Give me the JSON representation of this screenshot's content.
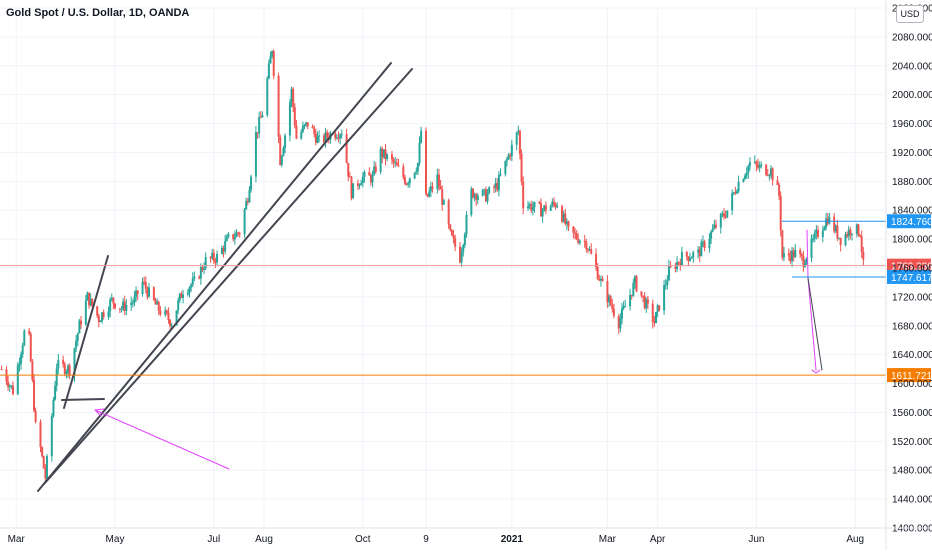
{
  "header": {
    "title": "Gold Spot / U.S. Dollar, 1D, OANDA",
    "currency": "USD"
  },
  "colors": {
    "up": "#26a69a",
    "down": "#ef5350",
    "support": "#f57c00",
    "level": "#2196f3",
    "arrow": "#e040fb",
    "trend": "#434651",
    "price_badge": "#ef5350"
  },
  "chart_data": {
    "type": "candlestick",
    "title": "Gold Spot / U.S. Dollar, 1D, OANDA",
    "ylim": [
      1400,
      2120
    ],
    "y_ticks": [
      "1400.000",
      "1440.000",
      "1480.000",
      "1520.000",
      "1560.000",
      "1600.000",
      "1640.000",
      "1680.000",
      "1720.000",
      "1760.000",
      "1800.000",
      "1840.000",
      "1880.000",
      "1920.000",
      "1960.000",
      "2000.000",
      "2040.000",
      "2080.000",
      "2120.000"
    ],
    "x_ticks": [
      "Mar",
      "May",
      "Jul",
      "Aug",
      "Oct",
      "9",
      "2021",
      "Mar",
      "Apr",
      "Jun",
      "Aug"
    ],
    "x_tick_values": [
      "2020-03-01",
      "2020-05-01",
      "2020-07-01",
      "2020-08-01",
      "2020-10-01",
      "2020-11-09",
      "2021-01-01",
      "2021-03-01",
      "2021-04-01",
      "2021-06-01",
      "2021-08-01"
    ],
    "x_range": [
      "2020-02-20",
      "2021-08-20"
    ],
    "series": [
      {
        "points": [
          [
            "2020-02-21",
            1620
          ],
          [
            "2020-02-28",
            1590
          ],
          [
            "2020-03-06",
            1670
          ],
          [
            "2020-03-09",
            1660
          ],
          [
            "2020-03-13",
            1540
          ],
          [
            "2020-03-16",
            1510
          ],
          [
            "2020-03-19",
            1470
          ],
          [
            "2020-03-23",
            1555
          ],
          [
            "2020-03-26",
            1625
          ],
          [
            "2020-04-03",
            1620
          ],
          [
            "2020-04-09",
            1680
          ],
          [
            "2020-04-14",
            1720
          ],
          [
            "2020-04-21",
            1690
          ],
          [
            "2020-04-29",
            1715
          ],
          [
            "2020-05-05",
            1705
          ],
          [
            "2020-05-13",
            1715
          ],
          [
            "2020-05-18",
            1740
          ],
          [
            "2020-05-27",
            1705
          ],
          [
            "2020-06-05",
            1685
          ],
          [
            "2020-06-12",
            1730
          ],
          [
            "2020-06-19",
            1740
          ],
          [
            "2020-06-26",
            1770
          ],
          [
            "2020-07-03",
            1775
          ],
          [
            "2020-07-10",
            1800
          ],
          [
            "2020-07-17",
            1810
          ],
          [
            "2020-07-22",
            1860
          ],
          [
            "2020-07-27",
            1945
          ],
          [
            "2020-07-31",
            1975
          ],
          [
            "2020-08-06",
            2065
          ],
          [
            "2020-08-11",
            1910
          ],
          [
            "2020-08-14",
            1945
          ],
          [
            "2020-08-18",
            2005
          ],
          [
            "2020-08-21",
            1940
          ],
          [
            "2020-08-28",
            1960
          ],
          [
            "2020-09-04",
            1935
          ],
          [
            "2020-09-11",
            1945
          ],
          [
            "2020-09-18",
            1950
          ],
          [
            "2020-09-24",
            1865
          ],
          [
            "2020-09-30",
            1885
          ],
          [
            "2020-10-07",
            1885
          ],
          [
            "2020-10-12",
            1920
          ],
          [
            "2020-10-20",
            1905
          ],
          [
            "2020-10-28",
            1880
          ],
          [
            "2020-11-04",
            1905
          ],
          [
            "2020-11-06",
            1950
          ],
          [
            "2020-11-09",
            1855
          ],
          [
            "2020-11-16",
            1885
          ],
          [
            "2020-11-24",
            1805
          ],
          [
            "2020-11-30",
            1775
          ],
          [
            "2020-12-07",
            1865
          ],
          [
            "2020-12-16",
            1860
          ],
          [
            "2020-12-23",
            1875
          ],
          [
            "2021-01-05",
            1950
          ],
          [
            "2021-01-08",
            1850
          ],
          [
            "2021-01-19",
            1840
          ],
          [
            "2021-01-29",
            1850
          ],
          [
            "2021-02-05",
            1810
          ],
          [
            "2021-02-16",
            1795
          ],
          [
            "2021-02-26",
            1735
          ],
          [
            "2021-03-08",
            1685
          ],
          [
            "2021-03-18",
            1740
          ],
          [
            "2021-03-30",
            1685
          ],
          [
            "2021-04-08",
            1755
          ],
          [
            "2021-04-16",
            1775
          ],
          [
            "2021-04-26",
            1780
          ],
          [
            "2021-05-06",
            1815
          ],
          [
            "2021-05-14",
            1840
          ],
          [
            "2021-05-20",
            1875
          ],
          [
            "2021-05-28",
            1905
          ],
          [
            "2021-06-01",
            1900
          ],
          [
            "2021-06-10",
            1895
          ],
          [
            "2021-06-15",
            1860
          ],
          [
            "2021-06-17",
            1775
          ],
          [
            "2021-06-25",
            1780
          ],
          [
            "2021-06-30",
            1770
          ],
          [
            "2021-07-08",
            1805
          ],
          [
            "2021-07-15",
            1830
          ],
          [
            "2021-07-23",
            1800
          ],
          [
            "2021-07-30",
            1815
          ],
          [
            "2021-08-04",
            1810
          ],
          [
            "2021-08-06",
            1763
          ]
        ]
      }
    ],
    "levels": [
      {
        "label": "1824.760",
        "value": 1824.76
      },
      {
        "label": "1763.236",
        "value": 1763.236,
        "countdown": "09:35"
      },
      {
        "label": "1747.617",
        "value": 1747.617
      },
      {
        "label": "1611.721",
        "value": 1611.721
      }
    ]
  }
}
